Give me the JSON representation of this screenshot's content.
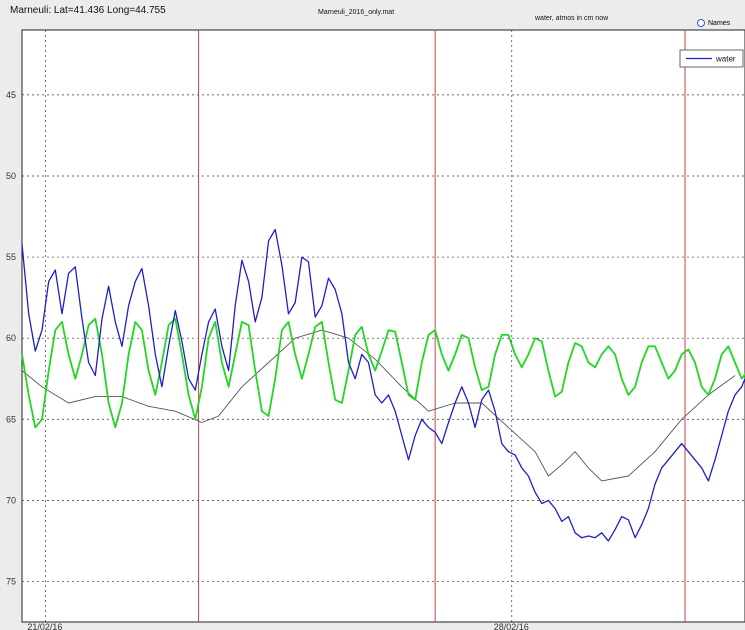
{
  "header": {
    "location": "Marneuli: Lat=41.436 Long=44.755",
    "file": "Marneuli_2016_only.mat",
    "units": "water, atmos in cm now",
    "names_label": "Names"
  },
  "chart_data": {
    "type": "line",
    "title": "",
    "xlabel": "",
    "ylabel": "",
    "y_reversed": true,
    "ylim": [
      77.5,
      41
    ],
    "y_ticks": [
      45,
      50,
      55,
      60,
      65,
      70,
      75
    ],
    "x_tick_labels": [
      {
        "day": 0,
        "label": "21/02/16"
      },
      {
        "day": 7,
        "label": "28/02/16"
      }
    ],
    "x_range_days": [
      -0.35,
      10.5
    ],
    "vertical_markers_days": [
      2.3,
      5.85,
      9.6
    ],
    "marker_color": "#d04040",
    "grid": true,
    "legend": {
      "position": "top-right",
      "entries": [
        "water"
      ]
    },
    "series": [
      {
        "name": "water",
        "color": "#1f1fc8",
        "points": [
          [
            -0.35,
            54.2
          ],
          [
            -0.25,
            58.5
          ],
          [
            -0.15,
            60.8
          ],
          [
            -0.05,
            59.5
          ],
          [
            0.05,
            56.5
          ],
          [
            0.15,
            55.8
          ],
          [
            0.25,
            58.5
          ],
          [
            0.35,
            56.0
          ],
          [
            0.45,
            55.6
          ],
          [
            0.55,
            58.8
          ],
          [
            0.65,
            61.5
          ],
          [
            0.75,
            62.3
          ],
          [
            0.85,
            58.8
          ],
          [
            0.95,
            56.8
          ],
          [
            1.05,
            59.0
          ],
          [
            1.15,
            60.5
          ],
          [
            1.25,
            58.0
          ],
          [
            1.35,
            56.5
          ],
          [
            1.45,
            55.7
          ],
          [
            1.55,
            58.0
          ],
          [
            1.65,
            61.0
          ],
          [
            1.75,
            63.0
          ],
          [
            1.85,
            60.5
          ],
          [
            1.95,
            58.3
          ],
          [
            2.05,
            60.2
          ],
          [
            2.15,
            62.5
          ],
          [
            2.25,
            63.2
          ],
          [
            2.35,
            61.0
          ],
          [
            2.45,
            59.0
          ],
          [
            2.55,
            58.2
          ],
          [
            2.65,
            60.5
          ],
          [
            2.75,
            62.0
          ],
          [
            2.85,
            58.0
          ],
          [
            2.95,
            55.2
          ],
          [
            3.05,
            56.5
          ],
          [
            3.15,
            59.0
          ],
          [
            3.25,
            57.5
          ],
          [
            3.35,
            54.0
          ],
          [
            3.45,
            53.3
          ],
          [
            3.55,
            55.5
          ],
          [
            3.65,
            58.5
          ],
          [
            3.75,
            57.8
          ],
          [
            3.85,
            55.0
          ],
          [
            3.95,
            55.3
          ],
          [
            4.05,
            58.7
          ],
          [
            4.15,
            58.0
          ],
          [
            4.25,
            56.3
          ],
          [
            4.35,
            57.0
          ],
          [
            4.45,
            58.5
          ],
          [
            4.55,
            61.5
          ],
          [
            4.65,
            62.5
          ],
          [
            4.75,
            61.0
          ],
          [
            4.85,
            61.5
          ],
          [
            4.95,
            63.5
          ],
          [
            5.05,
            64.0
          ],
          [
            5.15,
            63.5
          ],
          [
            5.25,
            64.5
          ],
          [
            5.35,
            66.0
          ],
          [
            5.45,
            67.5
          ],
          [
            5.55,
            66.0
          ],
          [
            5.65,
            65.0
          ],
          [
            5.75,
            65.5
          ],
          [
            5.85,
            65.8
          ],
          [
            5.95,
            66.5
          ],
          [
            6.05,
            65.2
          ],
          [
            6.15,
            64.0
          ],
          [
            6.25,
            63.0
          ],
          [
            6.35,
            64.0
          ],
          [
            6.45,
            65.5
          ],
          [
            6.55,
            63.8
          ],
          [
            6.65,
            63.2
          ],
          [
            6.75,
            64.5
          ],
          [
            6.85,
            66.5
          ],
          [
            6.95,
            67.0
          ],
          [
            7.05,
            67.2
          ],
          [
            7.15,
            68.0
          ],
          [
            7.25,
            68.5
          ],
          [
            7.35,
            69.5
          ],
          [
            7.45,
            70.2
          ],
          [
            7.55,
            70.0
          ],
          [
            7.65,
            70.5
          ],
          [
            7.75,
            71.3
          ],
          [
            7.85,
            71.0
          ],
          [
            7.95,
            72.0
          ],
          [
            8.05,
            72.3
          ],
          [
            8.15,
            72.2
          ],
          [
            8.25,
            72.3
          ],
          [
            8.35,
            72.0
          ],
          [
            8.45,
            72.5
          ],
          [
            8.55,
            71.8
          ],
          [
            8.65,
            71.0
          ],
          [
            8.75,
            71.2
          ],
          [
            8.85,
            72.3
          ],
          [
            8.95,
            71.5
          ],
          [
            9.05,
            70.5
          ],
          [
            9.15,
            69.0
          ],
          [
            9.25,
            68.0
          ],
          [
            9.35,
            67.5
          ],
          [
            9.45,
            67.0
          ],
          [
            9.55,
            66.5
          ],
          [
            9.65,
            67.0
          ],
          [
            9.75,
            67.5
          ],
          [
            9.85,
            68.0
          ],
          [
            9.95,
            68.8
          ],
          [
            10.05,
            67.5
          ],
          [
            10.15,
            66.0
          ],
          [
            10.25,
            64.5
          ],
          [
            10.35,
            63.5
          ],
          [
            10.45,
            63.0
          ],
          [
            10.55,
            62.0
          ],
          [
            10.65,
            61.5
          ],
          [
            10.75,
            63.0
          ],
          [
            10.85,
            64.5
          ],
          [
            10.95,
            65.0
          ],
          [
            11.05,
            63.5
          ],
          [
            11.15,
            61.8
          ],
          [
            11.25,
            61.5
          ],
          [
            11.35,
            62.5
          ],
          [
            11.45,
            63.0
          ],
          [
            11.55,
            62.2
          ]
        ]
      },
      {
        "name": "",
        "color": "#22d622",
        "points": [
          [
            -0.35,
            61.0
          ],
          [
            -0.25,
            63.5
          ],
          [
            -0.15,
            65.5
          ],
          [
            -0.05,
            65.0
          ],
          [
            0.05,
            62.0
          ],
          [
            0.15,
            59.5
          ],
          [
            0.25,
            59.0
          ],
          [
            0.35,
            61.0
          ],
          [
            0.45,
            62.5
          ],
          [
            0.55,
            61.0
          ],
          [
            0.65,
            59.2
          ],
          [
            0.75,
            58.8
          ],
          [
            0.85,
            61.0
          ],
          [
            0.95,
            64.0
          ],
          [
            1.05,
            65.5
          ],
          [
            1.15,
            64.0
          ],
          [
            1.25,
            61.0
          ],
          [
            1.35,
            59.0
          ],
          [
            1.45,
            59.5
          ],
          [
            1.55,
            62.0
          ],
          [
            1.65,
            63.5
          ],
          [
            1.75,
            61.5
          ],
          [
            1.85,
            59.2
          ],
          [
            1.95,
            58.8
          ],
          [
            2.05,
            61.0
          ],
          [
            2.15,
            63.5
          ],
          [
            2.25,
            65.0
          ],
          [
            2.35,
            63.0
          ],
          [
            2.45,
            60.0
          ],
          [
            2.55,
            59.0
          ],
          [
            2.65,
            61.5
          ],
          [
            2.75,
            63.0
          ],
          [
            2.85,
            61.0
          ],
          [
            2.95,
            59.0
          ],
          [
            3.05,
            59.2
          ],
          [
            3.15,
            62.0
          ],
          [
            3.25,
            64.5
          ],
          [
            3.35,
            64.8
          ],
          [
            3.45,
            62.5
          ],
          [
            3.55,
            59.5
          ],
          [
            3.65,
            59.0
          ],
          [
            3.75,
            61.0
          ],
          [
            3.85,
            62.5
          ],
          [
            3.95,
            61.0
          ],
          [
            4.05,
            59.3
          ],
          [
            4.15,
            59.0
          ],
          [
            4.25,
            61.5
          ],
          [
            4.35,
            63.8
          ],
          [
            4.45,
            64.0
          ],
          [
            4.55,
            62.0
          ],
          [
            4.65,
            59.8
          ],
          [
            4.75,
            59.3
          ],
          [
            4.85,
            61.0
          ],
          [
            4.95,
            62.0
          ],
          [
            5.05,
            60.8
          ],
          [
            5.15,
            59.5
          ],
          [
            5.25,
            59.6
          ],
          [
            5.35,
            61.5
          ],
          [
            5.45,
            63.5
          ],
          [
            5.55,
            63.8
          ],
          [
            5.65,
            61.5
          ],
          [
            5.75,
            59.8
          ],
          [
            5.85,
            59.5
          ],
          [
            5.95,
            61.0
          ],
          [
            6.05,
            62.0
          ],
          [
            6.15,
            61.0
          ],
          [
            6.25,
            59.8
          ],
          [
            6.35,
            60.0
          ],
          [
            6.45,
            61.8
          ],
          [
            6.55,
            63.2
          ],
          [
            6.65,
            63.0
          ],
          [
            6.75,
            61.0
          ],
          [
            6.85,
            59.8
          ],
          [
            6.95,
            59.8
          ],
          [
            7.05,
            61.0
          ],
          [
            7.15,
            61.8
          ],
          [
            7.25,
            61.0
          ],
          [
            7.35,
            60.0
          ],
          [
            7.45,
            60.2
          ],
          [
            7.55,
            62.0
          ],
          [
            7.65,
            63.6
          ],
          [
            7.75,
            63.3
          ],
          [
            7.85,
            61.5
          ],
          [
            7.95,
            60.3
          ],
          [
            8.05,
            60.5
          ],
          [
            8.15,
            61.5
          ],
          [
            8.25,
            61.8
          ],
          [
            8.35,
            61.0
          ],
          [
            8.45,
            60.5
          ],
          [
            8.55,
            61.0
          ],
          [
            8.65,
            62.5
          ],
          [
            8.75,
            63.5
          ],
          [
            8.85,
            63.0
          ],
          [
            8.95,
            61.5
          ],
          [
            9.05,
            60.5
          ],
          [
            9.15,
            60.5
          ],
          [
            9.25,
            61.5
          ],
          [
            9.35,
            62.5
          ],
          [
            9.45,
            62.0
          ],
          [
            9.55,
            61.0
          ],
          [
            9.65,
            60.7
          ],
          [
            9.75,
            61.5
          ],
          [
            9.85,
            63.0
          ],
          [
            9.95,
            63.5
          ],
          [
            10.05,
            62.5
          ],
          [
            10.15,
            61.0
          ],
          [
            10.25,
            60.5
          ],
          [
            10.35,
            61.5
          ],
          [
            10.45,
            62.5
          ],
          [
            10.55,
            62.0
          ],
          [
            10.65,
            61.0
          ],
          [
            10.75,
            60.8
          ],
          [
            10.85,
            62.5
          ],
          [
            10.95,
            64.5
          ],
          [
            11.05,
            63.0
          ],
          [
            11.15,
            61.0
          ],
          [
            11.25,
            60.0
          ],
          [
            11.35,
            60.5
          ],
          [
            11.45,
            61.5
          ],
          [
            11.55,
            60.5
          ]
        ]
      },
      {
        "name": "",
        "color": "#555555",
        "points": [
          [
            -0.35,
            62.0
          ],
          [
            -0.05,
            63.0
          ],
          [
            0.35,
            64.0
          ],
          [
            0.75,
            63.6
          ],
          [
            1.15,
            63.6
          ],
          [
            1.55,
            64.2
          ],
          [
            1.95,
            64.5
          ],
          [
            2.35,
            65.2
          ],
          [
            2.6,
            64.8
          ],
          [
            2.95,
            63.0
          ],
          [
            3.35,
            61.5
          ],
          [
            3.75,
            60.0
          ],
          [
            4.15,
            59.5
          ],
          [
            4.55,
            60.0
          ],
          [
            4.95,
            61.3
          ],
          [
            5.35,
            63.0
          ],
          [
            5.75,
            64.5
          ],
          [
            6.15,
            64.0
          ],
          [
            6.55,
            64.0
          ],
          [
            6.95,
            65.5
          ],
          [
            7.35,
            67.0
          ],
          [
            7.55,
            68.5
          ],
          [
            7.75,
            67.8
          ],
          [
            7.95,
            67.0
          ],
          [
            8.15,
            68.0
          ],
          [
            8.35,
            68.8
          ],
          [
            8.75,
            68.5
          ],
          [
            9.15,
            67.0
          ],
          [
            9.55,
            65.0
          ],
          [
            9.95,
            63.5
          ],
          [
            10.35,
            62.3
          ],
          [
            10.75,
            61.0
          ],
          [
            11.05,
            59.0
          ],
          [
            11.25,
            58.6
          ],
          [
            11.55,
            59.3
          ]
        ]
      }
    ]
  }
}
